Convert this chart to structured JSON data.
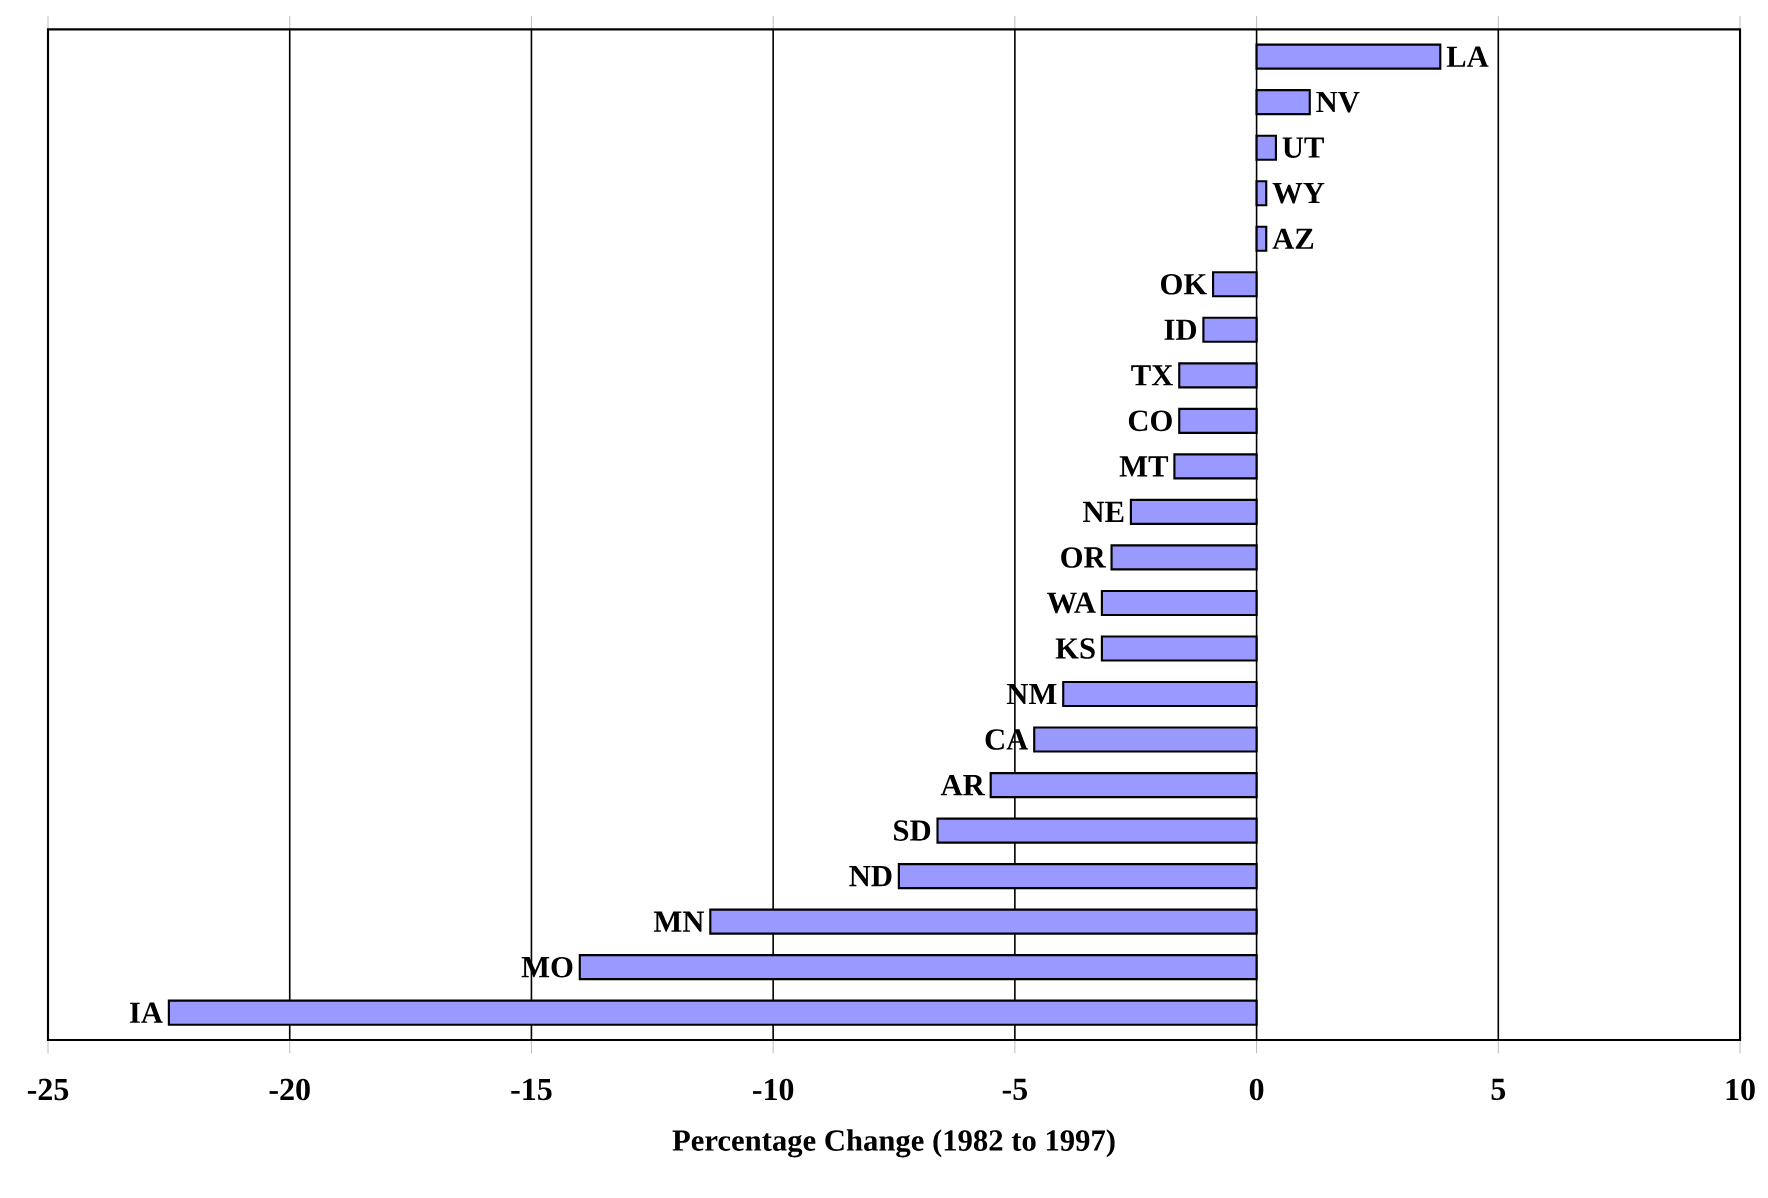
{
  "chart_data": {
    "type": "bar",
    "orientation": "horizontal",
    "xlabel": "Percentage Change (1982 to 1997)",
    "categories": [
      "LA",
      "NV",
      "UT",
      "WY",
      "AZ",
      "OK",
      "ID",
      "TX",
      "CO",
      "MT",
      "NE",
      "OR",
      "WA",
      "KS",
      "NM",
      "CA",
      "AR",
      "SD",
      "ND",
      "MN",
      "MO",
      "IA"
    ],
    "values": [
      3.8,
      1.1,
      0.4,
      0.2,
      0.2,
      -0.9,
      -1.1,
      -1.6,
      -1.6,
      -1.7,
      -2.6,
      -3.0,
      -3.2,
      -3.2,
      -4.0,
      -4.6,
      -5.5,
      -6.6,
      -7.4,
      -11.3,
      -14.0,
      -22.5
    ],
    "color": "#9999ff",
    "xlim": [
      -25,
      10
    ],
    "xticks": [
      -25,
      -20,
      -15,
      -10,
      -5,
      0,
      5,
      10
    ],
    "grid": "x"
  }
}
